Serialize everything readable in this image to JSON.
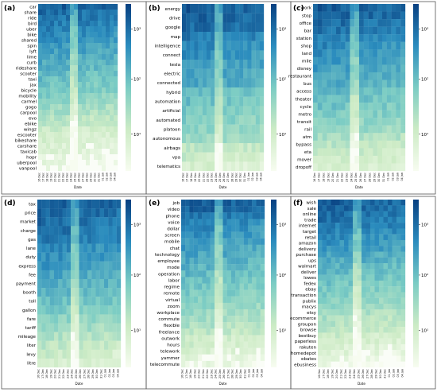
{
  "figure": {
    "date_labels": [
      "16 Dec",
      "17 Dec",
      "18 Dec",
      "19 Dec",
      "20 Dec",
      "21 Dec",
      "22 Dec",
      "23 Dec",
      "24 Dec",
      "25 Dec",
      "26 Dec",
      "27 Dec",
      "28 Dec",
      "29 Dec",
      "30 Dec",
      "31 Dec",
      "01 Jan",
      "02 Jan",
      "03 Jan",
      "04 Jan"
    ],
    "xlabel": "Date",
    "colors": {
      "low": "#f7fcf0",
      "mid_low": "#ccebc5",
      "mid": "#7bccc4",
      "mid_high": "#2b8cbe",
      "high": "#084081",
      "gap": "#fafdf7"
    }
  },
  "chart_data": [
    {
      "panel": "(a)",
      "type": "heatmap",
      "scale": "log",
      "colorbar_ticks": [
        "10³",
        "10²",
        "10¹"
      ],
      "rows": [
        "car",
        "share",
        "ride",
        "bird",
        "uber",
        "bike",
        "shared",
        "spin",
        "lyft",
        "lime",
        "curb",
        "rideshare",
        "scooter",
        "taxi",
        "jax",
        "bicycle",
        "mobility",
        "carmel",
        "gogo",
        "carpool",
        "evo",
        "ebike",
        "wingz",
        "escooter",
        "bikeshare",
        "carshare",
        "taxicab",
        "hopr",
        "uberpool",
        "vanpool"
      ],
      "row_levels": [
        3.6,
        3.4,
        3.3,
        3.2,
        3.1,
        3.0,
        2.9,
        2.8,
        2.7,
        2.6,
        2.5,
        2.4,
        2.3,
        2.2,
        2.1,
        2.0,
        1.9,
        1.8,
        1.6,
        1.5,
        1.3,
        1.2,
        1.0,
        0.9,
        0.8,
        0.7,
        0.6,
        0.5,
        0.4,
        0.3
      ]
    },
    {
      "panel": "(b)",
      "type": "heatmap",
      "scale": "log",
      "colorbar_ticks": [
        "10³",
        "10²",
        "10¹"
      ],
      "rows": [
        "energy",
        "drive",
        "google",
        "map",
        "intelligence",
        "connect",
        "tesla",
        "electric",
        "connected",
        "hybrid",
        "automation",
        "artificial",
        "automated",
        "platoon",
        "autonomous",
        "airbags",
        "vpa",
        "telematics"
      ],
      "row_levels": [
        3.6,
        3.5,
        3.4,
        3.2,
        3.0,
        2.9,
        2.8,
        2.7,
        2.6,
        2.3,
        2.2,
        2.0,
        1.9,
        1.8,
        1.6,
        1.2,
        1.0,
        0.8
      ]
    },
    {
      "panel": "(c)",
      "type": "heatmap",
      "scale": "log",
      "colorbar_ticks": [
        "10³",
        "10²",
        "10¹"
      ],
      "rows": [
        "work",
        "stop",
        "office",
        "bar",
        "station",
        "shop",
        "land",
        "mile",
        "disney",
        "restaurant",
        "bus",
        "access",
        "theater",
        "cycle",
        "metro",
        "transit",
        "rail",
        "atm",
        "bypass",
        "eta",
        "mover",
        "dropoff"
      ],
      "row_levels": [
        3.6,
        3.5,
        3.4,
        3.3,
        3.1,
        3.0,
        2.9,
        2.8,
        2.7,
        2.6,
        2.5,
        2.3,
        2.2,
        2.1,
        2.0,
        1.8,
        1.7,
        1.5,
        1.3,
        1.1,
        1.0,
        0.8
      ]
    },
    {
      "panel": "(d)",
      "type": "heatmap",
      "scale": "log",
      "colorbar_ticks": [
        "10³",
        "10²",
        "10¹"
      ],
      "rows": [
        "tax",
        "price",
        "market",
        "charge",
        "gas",
        "lane",
        "duty",
        "express",
        "fee",
        "payment",
        "booth",
        "toll",
        "gallon",
        "fare",
        "tariff",
        "mileage",
        "liter",
        "levy",
        "litre"
      ],
      "row_levels": [
        3.6,
        3.5,
        3.4,
        3.3,
        3.2,
        3.0,
        2.9,
        2.8,
        2.6,
        2.5,
        2.4,
        2.2,
        2.0,
        1.8,
        1.6,
        1.4,
        1.2,
        1.0,
        0.8
      ]
    },
    {
      "panel": "(e)",
      "type": "heatmap",
      "scale": "log",
      "colorbar_ticks": [
        "10³",
        "10²",
        "10¹"
      ],
      "rows": [
        "job",
        "video",
        "phone",
        "voice",
        "dollar",
        "screen",
        "mobile",
        "chat",
        "technology",
        "employee",
        "mode",
        "operation",
        "labor",
        "regime",
        "remote",
        "virtual",
        "zoom",
        "workplace",
        "commute",
        "flexible",
        "freelance",
        "outwork",
        "hours",
        "telework",
        "yammer",
        "telecommute"
      ],
      "row_levels": [
        3.6,
        3.5,
        3.3,
        3.1,
        3.0,
        2.9,
        2.8,
        2.7,
        2.6,
        2.5,
        2.4,
        2.3,
        2.2,
        2.1,
        2.0,
        1.9,
        1.8,
        1.6,
        1.5,
        1.4,
        1.2,
        1.0,
        0.9,
        0.7,
        0.5,
        0.4
      ]
    },
    {
      "panel": "(f)",
      "type": "heatmap",
      "scale": "log",
      "colorbar_ticks": [
        "10³",
        "10²",
        "10¹"
      ],
      "rows": [
        "wish",
        "sale",
        "online",
        "trade",
        "internet",
        "target",
        "retail",
        "amazon",
        "delivery",
        "purchase",
        "ups",
        "walmart",
        "deliver",
        "lowes",
        "fedex",
        "ebay",
        "transaction",
        "publix",
        "macys",
        "etsy",
        "ecommerce",
        "groupon",
        "browse",
        "bestbuy",
        "paperless",
        "rakuten",
        "homedepot",
        "ebates",
        "ebusiness"
      ],
      "row_levels": [
        3.6,
        3.5,
        3.4,
        3.3,
        3.2,
        3.1,
        3.0,
        2.9,
        2.8,
        2.6,
        2.5,
        2.4,
        2.3,
        2.2,
        2.1,
        2.0,
        1.9,
        1.8,
        1.7,
        1.5,
        1.4,
        1.3,
        1.2,
        1.0,
        0.9,
        0.7,
        0.6,
        0.4,
        0.3
      ]
    }
  ]
}
